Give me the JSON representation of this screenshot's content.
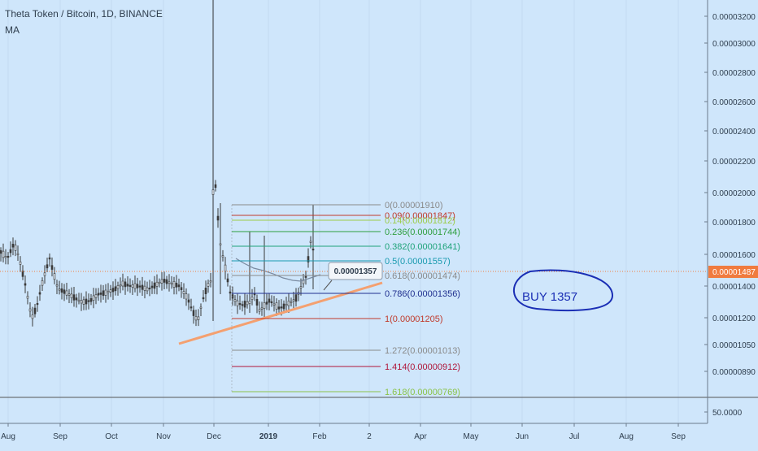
{
  "header": {
    "title": "Theta Token / Bitcoin, 1D, BINANCE",
    "indicator": "MA"
  },
  "annotations": {
    "note": "BUY 1357",
    "callout": "0.00001357"
  },
  "chart_data": {
    "type": "candlestick",
    "x_axis": {
      "labels": [
        "Aug",
        "Sep",
        "Oct",
        "Nov",
        "Dec",
        "2019",
        "Feb",
        "2",
        "Apr",
        "May",
        "Jun",
        "Jul",
        "Aug",
        "Sep"
      ]
    },
    "y_axis": {
      "scale": "log",
      "labels": [
        "0.00003200",
        "0.00003000",
        "0.00002800",
        "0.00002600",
        "0.00002400",
        "0.00002200",
        "0.00002000",
        "0.00001800",
        "0.00001600",
        "0.00001400",
        "0.00001200",
        "0.00001050",
        "0.00000890"
      ],
      "last_price_label": "0.00001487"
    },
    "fibonacci": [
      {
        "level": "0",
        "value": "0.00001910",
        "color": "#8a8a8a"
      },
      {
        "level": "0.09",
        "value": "0.00001847",
        "color": "#c0392b"
      },
      {
        "level": "0.14",
        "value": "0.00001812",
        "color": "#9ccc4a"
      },
      {
        "level": "0.236",
        "value": "0.00001744",
        "color": "#2e9e3e"
      },
      {
        "level": "0.382",
        "value": "0.00001641",
        "color": "#1fa37a"
      },
      {
        "level": "0.5",
        "value": "0.00001557",
        "color": "#1a9bb0"
      },
      {
        "level": "0.618",
        "value": "0.00001474",
        "color": "#8a8a8a"
      },
      {
        "level": "0.786",
        "value": "0.00001356",
        "color": "#1f2f8f"
      },
      {
        "level": "1",
        "value": "0.00001205",
        "color": "#c0392b"
      },
      {
        "level": "1.272",
        "value": "0.00001013",
        "color": "#8a8a8a"
      },
      {
        "level": "1.414",
        "value": "0.00000912",
        "color": "#b0163a"
      },
      {
        "level": "1.618",
        "value": "0.00000769",
        "color": "#8bc34a"
      }
    ],
    "lower_pane": {
      "label": "50.0000"
    },
    "colors": {
      "up": "#3a3a3a",
      "down": "#3a3a3a",
      "trendline": "#f4a070",
      "ma": "#7a8aa0",
      "last_price": "#f07b3f",
      "annotation": "#1b2fb5"
    }
  }
}
